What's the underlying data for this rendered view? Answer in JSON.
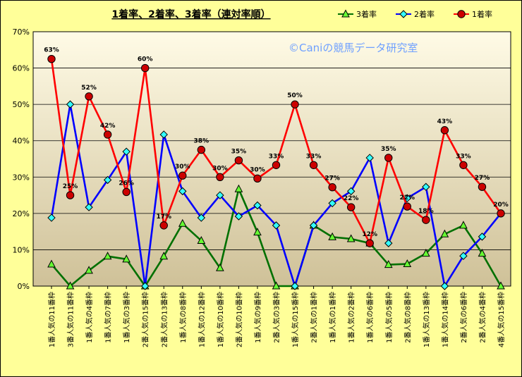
{
  "chart_data": {
    "type": "line",
    "title": "1着率、2着率、3着率（連対率順）",
    "watermark": "©Caniの競馬データ研究室",
    "ylim": [
      0,
      70
    ],
    "yticks": [
      "0%",
      "10%",
      "20%",
      "30%",
      "40%",
      "50%",
      "60%",
      "70%"
    ],
    "grid": true,
    "legend_position": "top-right",
    "categories": [
      "1番人気の11番枠",
      "3番人気の11番枠",
      "1番人気の4番枠",
      "1番人気の7番枠",
      "1番人気の3番枠",
      "2番人気の15番枠",
      "2番人気の13番枠",
      "1番人気の8番枠",
      "1番人気の12番枠",
      "1番人気の10番枠",
      "2番人気の10番枠",
      "1番人気の9番枠",
      "2番人気の3番枠",
      "1番人気の15番枠",
      "2番人気の1番枠",
      "1番人気の1番枠",
      "1番人気の2番枠",
      "1番人気の6番枠",
      "1番人気の5番枠",
      "2番人気の8番枠",
      "1番人気の13番枠",
      "1番人気の14番枠",
      "2番人気の6番枠",
      "2番人気の4番枠",
      "4番人気の15番枠"
    ],
    "series": [
      {
        "name": "3着率",
        "color": "#007000",
        "marker": "triangle",
        "marker_color": "#66ff33",
        "values": [
          6,
          0,
          4.3,
          8.2,
          7.4,
          0,
          8.2,
          17.2,
          12.5,
          5,
          26.7,
          14.8,
          0,
          0,
          16.7,
          13.5,
          13,
          11.8,
          5.9,
          6.1,
          9,
          14.3,
          16.7,
          9,
          0
        ]
      },
      {
        "name": "2着率",
        "color": "#0000ff",
        "marker": "diamond",
        "marker_color": "#33ffff",
        "values": [
          18.8,
          50,
          21.7,
          29.2,
          37,
          0,
          41.7,
          26.1,
          18.8,
          25,
          19.2,
          22.2,
          16.7,
          0,
          16.7,
          22.8,
          26.1,
          35.3,
          11.8,
          24.2,
          27.3,
          0,
          8.3,
          13.6,
          20
        ]
      },
      {
        "name": "1着率",
        "color": "#ff0000",
        "marker": "circle",
        "marker_color": "#cc0000",
        "values": [
          62.5,
          25,
          52.2,
          41.7,
          25.9,
          60,
          16.7,
          30.4,
          37.5,
          30,
          34.6,
          29.6,
          33.3,
          50,
          33.3,
          27.2,
          21.7,
          11.8,
          35.3,
          21.9,
          18.2,
          42.9,
          33.3,
          27.3,
          20
        ]
      }
    ],
    "data_labels": [
      {
        "index": 0,
        "text": "63%"
      },
      {
        "index": 1,
        "text": "25%"
      },
      {
        "index": 2,
        "text": "52%"
      },
      {
        "index": 3,
        "text": "42%"
      },
      {
        "index": 4,
        "text": "26%"
      },
      {
        "index": 5,
        "text": "60%"
      },
      {
        "index": 6,
        "text": "17%"
      },
      {
        "index": 7,
        "text": "30%"
      },
      {
        "index": 8,
        "text": "38%"
      },
      {
        "index": 9,
        "text": "30%"
      },
      {
        "index": 10,
        "text": "35%"
      },
      {
        "index": 11,
        "text": "30%"
      },
      {
        "index": 12,
        "text": "33%"
      },
      {
        "index": 13,
        "text": "50%"
      },
      {
        "index": 14,
        "text": "33%"
      },
      {
        "index": 15,
        "text": "27%"
      },
      {
        "index": 16,
        "text": "22%"
      },
      {
        "index": 17,
        "text": "12%"
      },
      {
        "index": 18,
        "text": "35%"
      },
      {
        "index": 19,
        "text": "22%"
      },
      {
        "index": 20,
        "text": "18%"
      },
      {
        "index": 21,
        "text": "43%"
      },
      {
        "index": 22,
        "text": "33%"
      },
      {
        "index": 23,
        "text": "27%"
      },
      {
        "index": 24,
        "text": "20%"
      }
    ],
    "colors": {
      "page_background": "#ffff99",
      "plot_gradient_top": "#fffbe6",
      "plot_gradient_bottom": "#cfc198",
      "gridline": "#000000"
    }
  }
}
